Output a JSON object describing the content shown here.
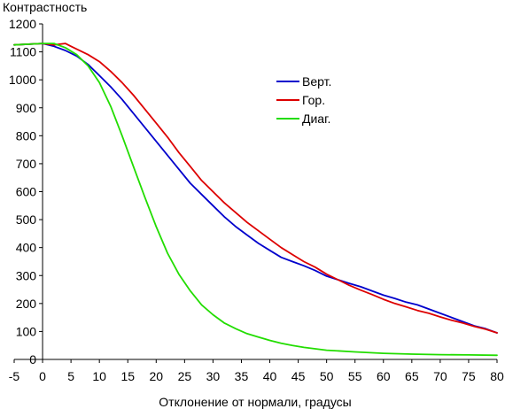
{
  "chart_data": {
    "type": "line",
    "ylabel": "Контрастность",
    "xlabel": "Отклонение от нормали, градусы",
    "xlim": [
      -5,
      80
    ],
    "ylim": [
      0,
      1200
    ],
    "xticks": [
      -5,
      0,
      5,
      10,
      15,
      20,
      25,
      30,
      35,
      40,
      45,
      50,
      55,
      60,
      65,
      70,
      75,
      80
    ],
    "yticks": [
      0,
      100,
      200,
      300,
      400,
      500,
      600,
      700,
      800,
      900,
      1000,
      1100,
      1200
    ],
    "grid": false,
    "legend_position": "upper-right",
    "series": [
      {
        "name": "Верт.",
        "color": "#0000cc",
        "x": [
          -5,
          0,
          2,
          4,
          6,
          8,
          10,
          12,
          14,
          16,
          18,
          20,
          22,
          24,
          26,
          28,
          30,
          32,
          34,
          36,
          38,
          40,
          42,
          44,
          46,
          48,
          50,
          52,
          54,
          56,
          58,
          60,
          62,
          64,
          66,
          68,
          70,
          72,
          74,
          76,
          78,
          80
        ],
        "y": [
          1125,
          1130,
          1120,
          1105,
          1085,
          1055,
          1015,
          975,
          930,
          880,
          830,
          780,
          730,
          680,
          630,
          590,
          550,
          510,
          475,
          445,
          415,
          390,
          365,
          350,
          335,
          318,
          298,
          285,
          272,
          260,
          245,
          230,
          218,
          205,
          195,
          180,
          165,
          150,
          135,
          120,
          110,
          95
        ]
      },
      {
        "name": "Гор.",
        "color": "#dd0000",
        "x": [
          -5,
          0,
          2,
          4,
          5,
          6,
          8,
          10,
          12,
          14,
          16,
          18,
          20,
          22,
          24,
          26,
          28,
          30,
          32,
          34,
          36,
          38,
          40,
          42,
          44,
          46,
          48,
          50,
          52,
          54,
          56,
          58,
          60,
          62,
          64,
          66,
          68,
          70,
          72,
          74,
          76,
          78,
          80
        ],
        "y": [
          1125,
          1130,
          1125,
          1130,
          1120,
          1110,
          1090,
          1065,
          1030,
          990,
          945,
          895,
          845,
          795,
          740,
          690,
          640,
          600,
          560,
          525,
          490,
          460,
          430,
          400,
          375,
          350,
          330,
          305,
          285,
          265,
          248,
          232,
          215,
          200,
          188,
          175,
          165,
          152,
          140,
          130,
          118,
          108,
          95
        ]
      },
      {
        "name": "Диаг.",
        "color": "#22dd00",
        "x": [
          -5,
          0,
          2,
          4,
          6,
          8,
          10,
          12,
          14,
          16,
          18,
          20,
          22,
          24,
          26,
          28,
          30,
          32,
          34,
          36,
          38,
          40,
          42,
          44,
          46,
          48,
          50,
          55,
          60,
          65,
          70,
          75,
          80
        ],
        "y": [
          1125,
          1130,
          1130,
          1115,
          1090,
          1050,
          990,
          905,
          800,
          690,
          580,
          475,
          380,
          305,
          245,
          195,
          160,
          130,
          110,
          92,
          80,
          68,
          58,
          50,
          43,
          38,
          33,
          27,
          22,
          19,
          17,
          16,
          15
        ]
      }
    ]
  }
}
